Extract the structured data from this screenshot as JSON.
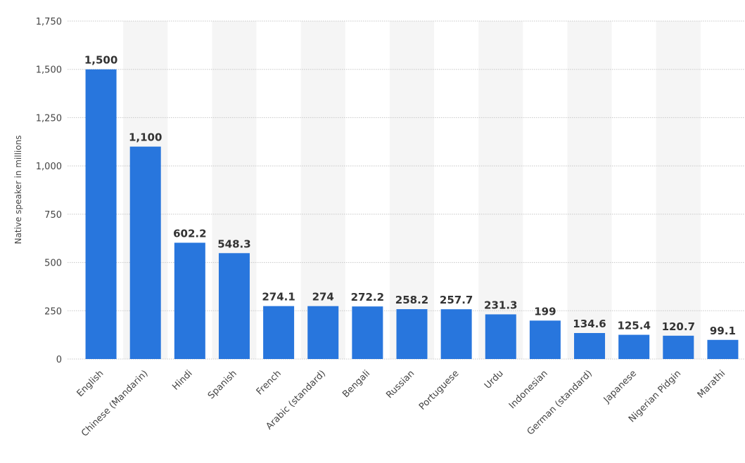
{
  "chart_data": {
    "type": "bar",
    "ylabel": "Native speaker in millions",
    "xlabel": "",
    "ylim": [
      0,
      1750
    ],
    "yticks": [
      0,
      250,
      500,
      750,
      1000,
      1250,
      1500,
      1750
    ],
    "ytick_labels": [
      "0",
      "250",
      "500",
      "750",
      "1,000",
      "1,250",
      "1,500",
      "1,750"
    ],
    "grid": true,
    "categories": [
      "English",
      "Chinese (Mandarin)",
      "Hindi",
      "Spanish",
      "French",
      "Arabic (standard)",
      "Bengali",
      "Russian",
      "Portuguese",
      "Urdu",
      "Indonesian",
      "German (standard)",
      "Japanese",
      "Nigerian Pidgin",
      "Marathi"
    ],
    "values": [
      1500,
      1100,
      602.2,
      548.3,
      274.1,
      274,
      272.2,
      258.2,
      257.7,
      231.3,
      199,
      134.6,
      125.4,
      120.7,
      99.1
    ],
    "value_labels": [
      "1,500",
      "1,100",
      "602.2",
      "548.3",
      "274.1",
      "274",
      "272.2",
      "258.2",
      "257.7",
      "231.3",
      "199",
      "134.6",
      "125.4",
      "120.7",
      "99.1"
    ],
    "colors": {
      "bar": "#2876dd",
      "band": "#f5f5f5",
      "grid": "#c8c8c8"
    }
  }
}
